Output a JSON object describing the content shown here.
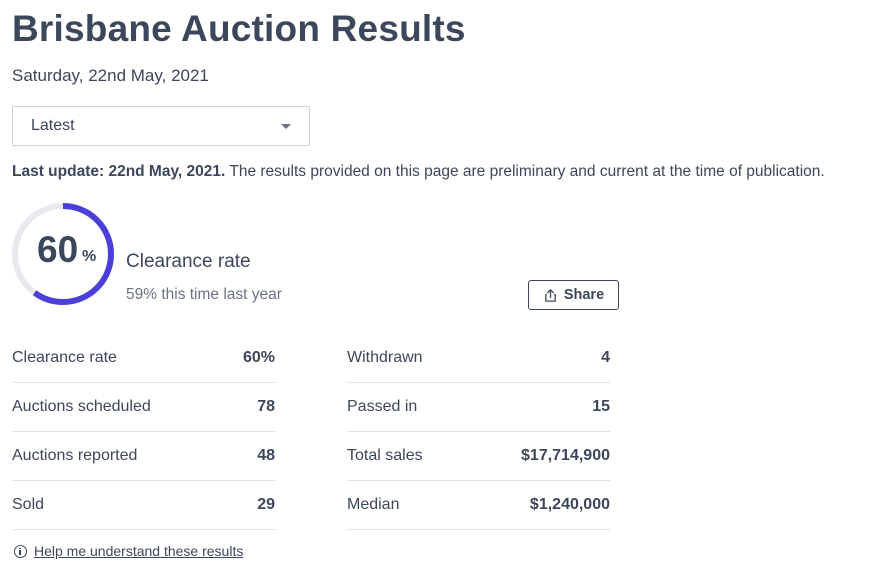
{
  "page": {
    "title": "Brisbane Auction Results",
    "date": "Saturday, 22nd May, 2021"
  },
  "filter": {
    "selected": "Latest"
  },
  "update": {
    "bold": "Last update: 22nd May, 2021.",
    "text": "The results provided on this page are preliminary and current at the time of publication."
  },
  "clearance": {
    "value": "60",
    "percent_sign": "%",
    "fraction": 0.6,
    "label": "Clearance rate",
    "last_year": "59% this time last year"
  },
  "share": {
    "label": "Share",
    "icon": "share-icon"
  },
  "stats_left": [
    {
      "label": "Clearance rate",
      "value": "60%"
    },
    {
      "label": "Auctions scheduled",
      "value": "78"
    },
    {
      "label": "Auctions reported",
      "value": "48"
    },
    {
      "label": "Sold",
      "value": "29"
    }
  ],
  "stats_right": [
    {
      "label": "Withdrawn",
      "value": "4"
    },
    {
      "label": "Passed in",
      "value": "15"
    },
    {
      "label": "Total sales",
      "value": "$17,714,900"
    },
    {
      "label": "Median",
      "value": "$1,240,000"
    }
  ],
  "help": {
    "label": "Help me understand these results",
    "icon": "info-icon"
  },
  "colors": {
    "text": "#3c475b",
    "accent": "#4a3fd8",
    "ring_track": "#e7e9ee"
  }
}
